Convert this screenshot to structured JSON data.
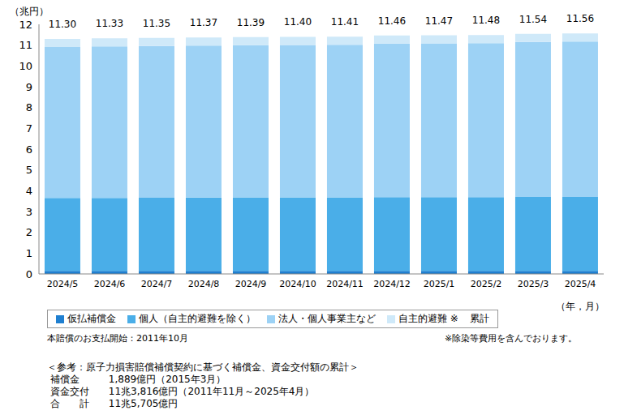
{
  "chart_data": {
    "type": "bar",
    "stacked": true,
    "grid": false,
    "legend": "bottom",
    "y_unit_label": "（兆円）",
    "x_axis_label": "（年，月）",
    "categories": [
      "2024/5",
      "2024/6",
      "2024/7",
      "2024/8",
      "2024/9",
      "2024/10",
      "2024/11",
      "2024/12",
      "2025/1",
      "2025/2",
      "2025/3",
      "2025/4"
    ],
    "series": [
      {
        "name": "仮払補償金",
        "color": "#1f7fd0",
        "values": [
          0.15,
          0.15,
          0.15,
          0.15,
          0.15,
          0.15,
          0.15,
          0.15,
          0.15,
          0.15,
          0.15,
          0.15
        ]
      },
      {
        "name": "個人（自主的避難を除く）",
        "color": "#4aaee8",
        "values": [
          3.5,
          3.5,
          3.51,
          3.52,
          3.53,
          3.53,
          3.53,
          3.54,
          3.54,
          3.54,
          3.55,
          3.55
        ]
      },
      {
        "name": "法人・個人事業主など",
        "color": "#9dd2f5",
        "values": [
          7.26,
          7.29,
          7.3,
          7.31,
          7.32,
          7.33,
          7.34,
          7.38,
          7.39,
          7.4,
          7.45,
          7.47
        ]
      },
      {
        "name": "自主的避難 ※",
        "color": "#cfe9f9",
        "values": [
          0.39,
          0.39,
          0.39,
          0.39,
          0.39,
          0.39,
          0.39,
          0.39,
          0.39,
          0.39,
          0.39,
          0.39
        ]
      }
    ],
    "legend_suffix": "累計",
    "totals": [
      11.3,
      11.33,
      11.35,
      11.37,
      11.39,
      11.4,
      11.41,
      11.46,
      11.47,
      11.48,
      11.54,
      11.56
    ],
    "total_labels": [
      "11.30",
      "11.33",
      "11.35",
      "11.37",
      "11.39",
      "11.40",
      "11.41",
      "11.46",
      "11.47",
      "11.48",
      "11.54",
      "11.56"
    ],
    "ylim": [
      0,
      12
    ],
    "yticks": [
      0,
      1,
      2,
      3,
      4,
      5,
      6,
      7,
      8,
      9,
      10,
      11,
      12
    ],
    "annotations": [
      "本賠償のお支払開始：2011年10月",
      "※除染等費用を含んでおります。"
    ],
    "note_lines": [
      "＜参考：原子力損害賠償補償契約に基づく補償金、資金交付額の累計＞",
      " 補償金　　　1,889億円（2015年3月）",
      " 資金交付　　11兆3,816億円（2011年11月～2025年4月）",
      " 合　　計　　11兆5,705億円"
    ]
  }
}
